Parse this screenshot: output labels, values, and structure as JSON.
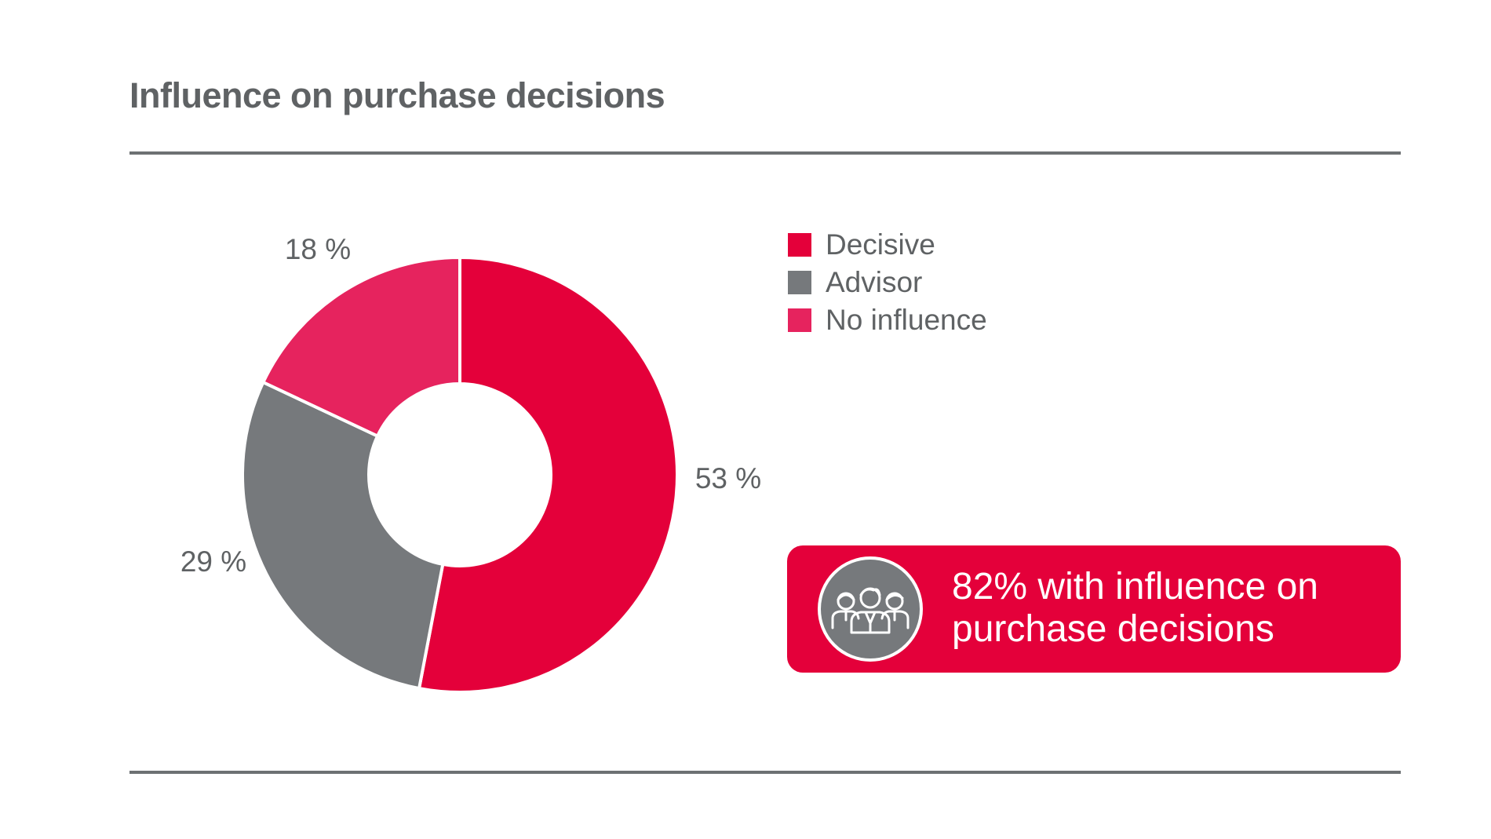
{
  "chart_data": {
    "type": "pie",
    "title": "Influence on purchase decisions",
    "donut": true,
    "slices": [
      {
        "name": "Decisive",
        "value": 53,
        "label": "53 %",
        "color": "#e4003a"
      },
      {
        "name": "Advisor",
        "value": 29,
        "label": "29 %",
        "color": "#76797c"
      },
      {
        "name": "No influence",
        "value": 18,
        "label": "18 %",
        "color": "#e6235e"
      }
    ],
    "legend_position": "right"
  },
  "legend": {
    "items": [
      {
        "label": "Decisive",
        "color": "#e4003a"
      },
      {
        "label": "Advisor",
        "color": "#76797c"
      },
      {
        "label": "No influence",
        "color": "#e6235e"
      }
    ]
  },
  "callout": {
    "text": "82% with influence on purchase decisions",
    "background": "#e4003a",
    "icon": "group-of-people-icon",
    "icon_background": "#76797c"
  },
  "colors": {
    "text": "#5f6264",
    "rule": "#6d7173"
  }
}
